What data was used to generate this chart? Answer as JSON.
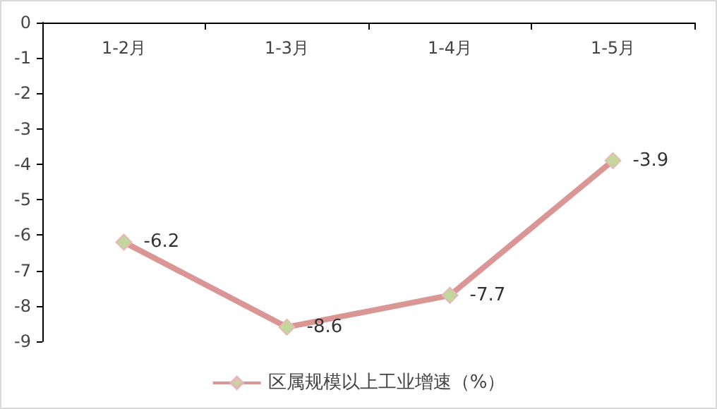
{
  "chart_data": {
    "type": "line",
    "categories": [
      "1-2月",
      "1-3月",
      "1-4月",
      "1-5月"
    ],
    "series": [
      {
        "name": "区属规模以上工业增速（%）",
        "color": "#d99694",
        "values": [
          -6.2,
          -8.6,
          -7.7,
          -3.9
        ]
      }
    ],
    "ylim": [
      -9,
      0
    ],
    "yticks": [
      0,
      -1,
      -2,
      -3,
      -4,
      -5,
      -6,
      -7,
      -8,
      -9
    ],
    "grid": false,
    "legend": "bottom",
    "marker": "diamond",
    "data_labels": true
  }
}
